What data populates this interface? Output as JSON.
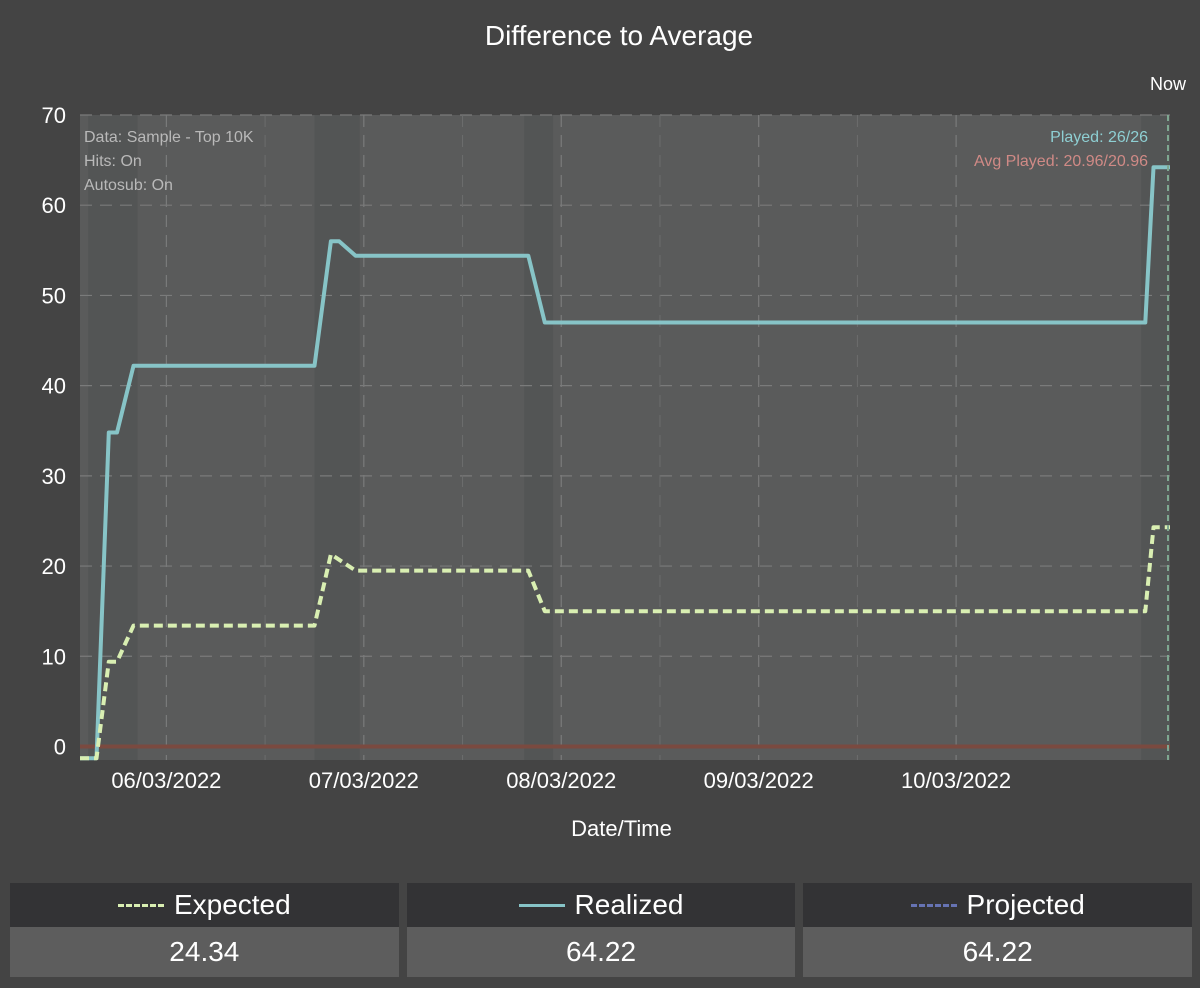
{
  "chart_data": {
    "type": "line",
    "title": "Difference to Average",
    "xlabel": "Date/Time",
    "ylabel": "",
    "ylim": [
      -1.5,
      70
    ],
    "x_range": [
      "2022-03-05T13:30",
      "2022-03-11T02:00"
    ],
    "x_ticks": [
      "06/03/2022",
      "07/03/2022",
      "08/03/2022",
      "09/03/2022",
      "10/03/2022"
    ],
    "y_ticks": [
      0,
      10,
      20,
      30,
      40,
      50,
      60,
      70
    ],
    "grid": true,
    "now_label": "Now",
    "info": [
      "Data: Sample - Top 10K",
      "Hits: On",
      "Autosub: On"
    ],
    "stats": [
      {
        "text": "Played: 26/26",
        "color": "#8ecfd3"
      },
      {
        "text": "Avg Played: 20.96/20.96",
        "color": "#d08a86"
      }
    ],
    "series": [
      {
        "name": "Realized",
        "style": "solid",
        "color": "#87c4c7",
        "points": [
          [
            "2022-03-05T13:30",
            -1.3
          ],
          [
            "2022-03-05T15:30",
            -1.3
          ],
          [
            "2022-03-05T17:00",
            34.8
          ],
          [
            "2022-03-05T18:00",
            34.8
          ],
          [
            "2022-03-05T20:00",
            42.2
          ],
          [
            "2022-03-06T18:00",
            42.2
          ],
          [
            "2022-03-06T20:00",
            56.0
          ],
          [
            "2022-03-06T21:00",
            56.0
          ],
          [
            "2022-03-06T23:00",
            54.4
          ],
          [
            "2022-03-07T20:00",
            54.4
          ],
          [
            "2022-03-07T22:00",
            47.0
          ],
          [
            "2022-03-10T23:00",
            47.0
          ],
          [
            "2022-03-11T00:00",
            64.2
          ],
          [
            "2022-03-11T02:00",
            64.2
          ]
        ]
      },
      {
        "name": "Expected",
        "style": "dashed",
        "color": "#d9efb2",
        "points": [
          [
            "2022-03-05T13:30",
            -1.3
          ],
          [
            "2022-03-05T15:30",
            -1.3
          ],
          [
            "2022-03-05T17:00",
            9.4
          ],
          [
            "2022-03-05T18:00",
            9.4
          ],
          [
            "2022-03-05T20:00",
            13.4
          ],
          [
            "2022-03-06T18:00",
            13.4
          ],
          [
            "2022-03-06T20:00",
            21.3
          ],
          [
            "2022-03-06T23:00",
            19.5
          ],
          [
            "2022-03-07T20:00",
            19.5
          ],
          [
            "2022-03-07T22:00",
            15.0
          ],
          [
            "2022-03-10T23:00",
            15.0
          ],
          [
            "2022-03-11T00:00",
            24.3
          ],
          [
            "2022-03-11T02:00",
            24.3
          ]
        ]
      },
      {
        "name": "Projected",
        "style": "dashed",
        "color": "#6673b3",
        "points": []
      }
    ],
    "baseline": {
      "value": 0,
      "color": "#7a4a40"
    },
    "legend": [
      {
        "label": "Expected",
        "value": "24.34",
        "color": "#d9efb2",
        "style": "dashed"
      },
      {
        "label": "Realized",
        "value": "64.22",
        "color": "#87c4c7",
        "style": "solid"
      },
      {
        "label": "Projected",
        "value": "64.22",
        "color": "#6673b3",
        "style": "dashed"
      }
    ]
  }
}
